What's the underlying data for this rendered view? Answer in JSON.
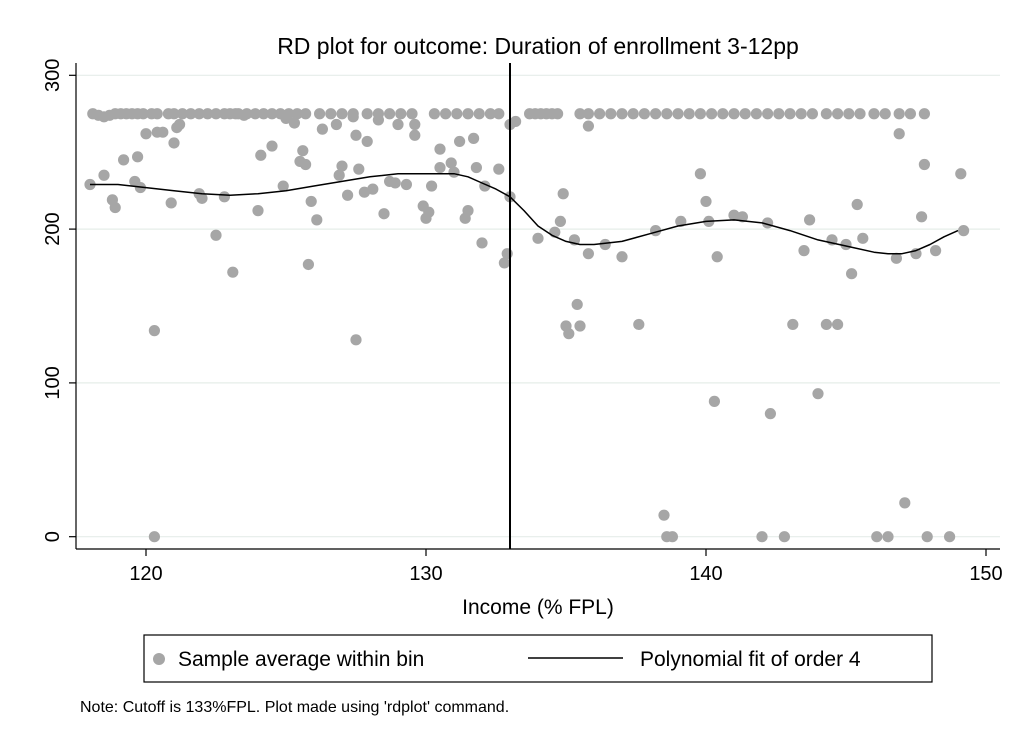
{
  "chart_data": {
    "type": "scatter",
    "title": "RD plot for outcome: Duration of enrollment 3-12pp",
    "xlabel": "Income (% FPL)",
    "ylabel": "",
    "xlim": [
      117.5,
      150.5
    ],
    "ylim": [
      -8,
      308
    ],
    "x_ticks": [
      "120",
      "130",
      "140",
      "150"
    ],
    "y_ticks": [
      "0",
      "100",
      "200",
      "300"
    ],
    "x_tick_values": [
      120,
      130,
      140,
      150
    ],
    "y_tick_values": [
      0,
      100,
      200,
      300
    ],
    "grid": true,
    "cutoff": 133,
    "legend": {
      "placement": "bottom",
      "items": [
        "Sample average within bin",
        "Polynomial fit of order 4"
      ]
    },
    "note": "Note: Cutoff is 133%FPL. Plot made using 'rdplot' command.",
    "colors": {
      "points": "#a6a6a6",
      "line": "#000000",
      "grid": "#e6ede9"
    },
    "series": [
      {
        "name": "Sample average within bin",
        "kind": "scatter",
        "points": [
          [
            118.1,
            275
          ],
          [
            118.3,
            274
          ],
          [
            118.5,
            273
          ],
          [
            118.7,
            274
          ],
          [
            118.9,
            275
          ],
          [
            119.1,
            275
          ],
          [
            119.3,
            275
          ],
          [
            119.5,
            275
          ],
          [
            119.7,
            275
          ],
          [
            119.9,
            275
          ],
          [
            120.2,
            275
          ],
          [
            120.4,
            275
          ],
          [
            120.8,
            275
          ],
          [
            121.0,
            275
          ],
          [
            121.3,
            275
          ],
          [
            121.6,
            275
          ],
          [
            121.9,
            275
          ],
          [
            122.2,
            275
          ],
          [
            122.5,
            275
          ],
          [
            122.8,
            275
          ],
          [
            123.0,
            275
          ],
          [
            123.3,
            275
          ],
          [
            123.6,
            275
          ],
          [
            123.9,
            275
          ],
          [
            124.2,
            275
          ],
          [
            124.5,
            275
          ],
          [
            124.8,
            275
          ],
          [
            125.1,
            275
          ],
          [
            125.4,
            275
          ],
          [
            125.7,
            275
          ],
          [
            126.2,
            275
          ],
          [
            126.6,
            275
          ],
          [
            127.0,
            275
          ],
          [
            127.4,
            275
          ],
          [
            127.9,
            275
          ],
          [
            128.3,
            275
          ],
          [
            128.7,
            275
          ],
          [
            129.1,
            275
          ],
          [
            129.5,
            275
          ],
          [
            130.3,
            275
          ],
          [
            130.7,
            275
          ],
          [
            131.1,
            275
          ],
          [
            131.5,
            275
          ],
          [
            131.9,
            275
          ],
          [
            132.3,
            275
          ],
          [
            132.6,
            275
          ],
          [
            133.7,
            275
          ],
          [
            133.9,
            275
          ],
          [
            134.1,
            275
          ],
          [
            134.3,
            275
          ],
          [
            134.5,
            275
          ],
          [
            134.7,
            275
          ],
          [
            135.5,
            275
          ],
          [
            135.8,
            275
          ],
          [
            136.2,
            275
          ],
          [
            136.6,
            275
          ],
          [
            137.0,
            275
          ],
          [
            137.4,
            275
          ],
          [
            137.8,
            275
          ],
          [
            138.2,
            275
          ],
          [
            138.6,
            275
          ],
          [
            139.0,
            275
          ],
          [
            139.4,
            275
          ],
          [
            139.8,
            275
          ],
          [
            140.2,
            275
          ],
          [
            140.6,
            275
          ],
          [
            141.0,
            275
          ],
          [
            141.4,
            275
          ],
          [
            141.8,
            275
          ],
          [
            142.2,
            275
          ],
          [
            142.6,
            275
          ],
          [
            143.0,
            275
          ],
          [
            143.4,
            275
          ],
          [
            143.8,
            275
          ],
          [
            144.3,
            275
          ],
          [
            144.7,
            275
          ],
          [
            145.1,
            275
          ],
          [
            145.5,
            275
          ],
          [
            146.0,
            275
          ],
          [
            146.4,
            275
          ],
          [
            146.9,
            275
          ],
          [
            147.3,
            275
          ],
          [
            147.8,
            275
          ],
          [
            118.0,
            229
          ],
          [
            118.5,
            235
          ],
          [
            118.8,
            219
          ],
          [
            118.9,
            214
          ],
          [
            119.2,
            245
          ],
          [
            119.6,
            231
          ],
          [
            119.7,
            247
          ],
          [
            119.8,
            227
          ],
          [
            120.0,
            262
          ],
          [
            120.3,
            134
          ],
          [
            120.4,
            263
          ],
          [
            120.6,
            263
          ],
          [
            120.9,
            217
          ],
          [
            121.0,
            256
          ],
          [
            121.1,
            266
          ],
          [
            121.2,
            268
          ],
          [
            121.9,
            223
          ],
          [
            122.0,
            220
          ],
          [
            122.5,
            196
          ],
          [
            122.8,
            221
          ],
          [
            123.1,
            172
          ],
          [
            123.2,
            275
          ],
          [
            123.5,
            274
          ],
          [
            124.0,
            212
          ],
          [
            124.1,
            248
          ],
          [
            124.5,
            254
          ],
          [
            124.9,
            228
          ],
          [
            125.0,
            272
          ],
          [
            125.3,
            269
          ],
          [
            125.5,
            244
          ],
          [
            125.6,
            251
          ],
          [
            125.7,
            242
          ],
          [
            125.8,
            177
          ],
          [
            125.9,
            218
          ],
          [
            126.1,
            206
          ],
          [
            126.3,
            265
          ],
          [
            126.8,
            268
          ],
          [
            126.9,
            235
          ],
          [
            127.0,
            241
          ],
          [
            127.2,
            222
          ],
          [
            127.4,
            273
          ],
          [
            127.5,
            261
          ],
          [
            127.6,
            239
          ],
          [
            127.8,
            224
          ],
          [
            127.9,
            257
          ],
          [
            128.1,
            226
          ],
          [
            128.3,
            271
          ],
          [
            128.5,
            210
          ],
          [
            128.7,
            231
          ],
          [
            128.9,
            230
          ],
          [
            129.0,
            268
          ],
          [
            129.3,
            229
          ],
          [
            129.6,
            261
          ],
          [
            129.6,
            268
          ],
          [
            129.9,
            215
          ],
          [
            130.0,
            207
          ],
          [
            130.1,
            211
          ],
          [
            130.2,
            228
          ],
          [
            130.5,
            240
          ],
          [
            130.5,
            252
          ],
          [
            130.9,
            243
          ],
          [
            131.0,
            237
          ],
          [
            131.2,
            257
          ],
          [
            131.4,
            207
          ],
          [
            131.5,
            212
          ],
          [
            131.7,
            259
          ],
          [
            131.8,
            240
          ],
          [
            132.0,
            191
          ],
          [
            132.1,
            228
          ],
          [
            132.6,
            239
          ],
          [
            132.8,
            178
          ],
          [
            133.0,
            268
          ],
          [
            132.9,
            184
          ],
          [
            127.5,
            128
          ],
          [
            120.3,
            0
          ],
          [
            133.0,
            221
          ],
          [
            133.2,
            270
          ],
          [
            134.0,
            194
          ],
          [
            134.6,
            198
          ],
          [
            134.8,
            205
          ],
          [
            134.9,
            223
          ],
          [
            135.0,
            137
          ],
          [
            135.1,
            132
          ],
          [
            135.3,
            193
          ],
          [
            135.4,
            151
          ],
          [
            135.5,
            137
          ],
          [
            135.8,
            184
          ],
          [
            135.8,
            267
          ],
          [
            136.4,
            190
          ],
          [
            137.0,
            182
          ],
          [
            137.6,
            138
          ],
          [
            138.2,
            199
          ],
          [
            138.5,
            14
          ],
          [
            138.8,
            0
          ],
          [
            139.1,
            205
          ],
          [
            139.8,
            236
          ],
          [
            140.0,
            218
          ],
          [
            140.1,
            205
          ],
          [
            140.3,
            88
          ],
          [
            140.4,
            182
          ],
          [
            141.0,
            209
          ],
          [
            141.3,
            208
          ],
          [
            142.0,
            0
          ],
          [
            142.2,
            204
          ],
          [
            142.3,
            80
          ],
          [
            142.8,
            0
          ],
          [
            143.1,
            138
          ],
          [
            143.5,
            186
          ],
          [
            143.7,
            206
          ],
          [
            144.0,
            93
          ],
          [
            144.3,
            138
          ],
          [
            144.5,
            193
          ],
          [
            144.7,
            138
          ],
          [
            145.0,
            190
          ],
          [
            145.2,
            171
          ],
          [
            145.4,
            216
          ],
          [
            145.6,
            194
          ],
          [
            146.1,
            0
          ],
          [
            146.5,
            0
          ],
          [
            146.8,
            181
          ],
          [
            146.9,
            262
          ],
          [
            147.1,
            22
          ],
          [
            147.5,
            184
          ],
          [
            147.7,
            208
          ],
          [
            147.8,
            242
          ],
          [
            147.9,
            0
          ],
          [
            148.2,
            186
          ],
          [
            148.7,
            0
          ],
          [
            149.1,
            236
          ],
          [
            149.2,
            199
          ],
          [
            138.6,
            0
          ]
        ]
      },
      {
        "name": "Polynomial fit of order 4",
        "kind": "line",
        "segments": [
          [
            [
              118.0,
              229
            ],
            [
              119.0,
              229
            ],
            [
              120.0,
              227
            ],
            [
              121.0,
              225
            ],
            [
              122.0,
              223
            ],
            [
              123.0,
              222
            ],
            [
              124.0,
              223
            ],
            [
              125.0,
              225
            ],
            [
              126.0,
              228
            ],
            [
              127.0,
              231
            ],
            [
              128.0,
              234
            ],
            [
              129.0,
              236
            ],
            [
              130.0,
              236
            ],
            [
              131.0,
              236
            ],
            [
              131.5,
              234
            ],
            [
              132.0,
              230
            ],
            [
              132.5,
              226
            ],
            [
              133.0,
              221
            ]
          ],
          [
            [
              133.0,
              221
            ],
            [
              133.5,
              212
            ],
            [
              134.0,
              202
            ],
            [
              134.5,
              196
            ],
            [
              135.0,
              192
            ],
            [
              135.5,
              190
            ],
            [
              136.0,
              190
            ],
            [
              137.0,
              192
            ],
            [
              138.0,
              197
            ],
            [
              139.0,
              202
            ],
            [
              140.0,
              205
            ],
            [
              141.0,
              206
            ],
            [
              142.0,
              204
            ],
            [
              143.0,
              199
            ],
            [
              144.0,
              193
            ],
            [
              145.0,
              189
            ],
            [
              146.0,
              185
            ],
            [
              146.5,
              184
            ],
            [
              147.0,
              184
            ],
            [
              147.5,
              186
            ],
            [
              148.0,
              190
            ],
            [
              148.5,
              195
            ],
            [
              149.0,
              199
            ]
          ]
        ]
      }
    ]
  }
}
